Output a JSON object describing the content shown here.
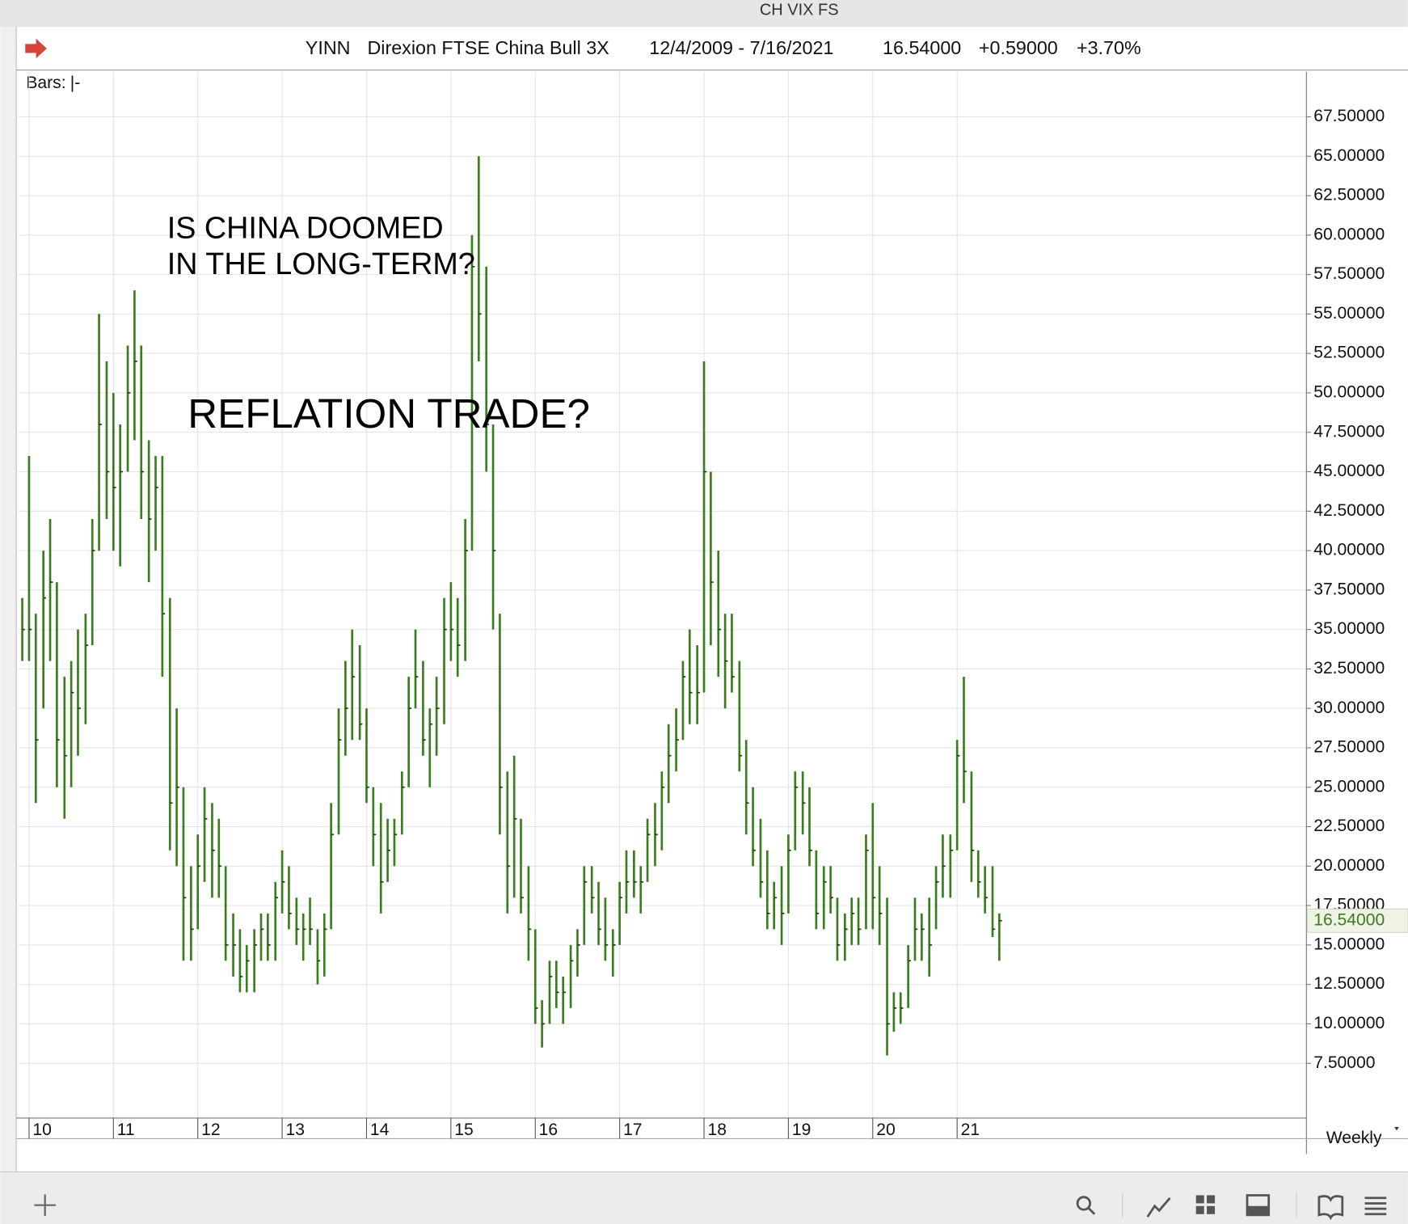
{
  "window_title": "CH VIX FS",
  "header": {
    "symbol": "YINN",
    "name": "Direxion FTSE China Bull 3X",
    "range": "12/4/2009 - 7/16/2021",
    "last": "16.54000",
    "change": "+0.59000",
    "percent": "+3.70%"
  },
  "bars_label": "Bars:",
  "bars_value": "|-",
  "period": "Weekly",
  "chart_data": {
    "type": "ohlc",
    "annotations": [
      "IS CHINA DOOMED",
      "IN THE LONG-TERM?",
      "REFLATION TRADE?"
    ],
    "color": "#3a7d1c",
    "xlim": [
      2009.87,
      2025.14
    ],
    "ylim": [
      4.03,
      70.35
    ],
    "xticks": [
      {
        "value": 2010,
        "label": "10"
      },
      {
        "value": 2011,
        "label": "11"
      },
      {
        "value": 2012,
        "label": "12"
      },
      {
        "value": 2013,
        "label": "13"
      },
      {
        "value": 2014,
        "label": "14"
      },
      {
        "value": 2015,
        "label": "15"
      },
      {
        "value": 2016,
        "label": "16"
      },
      {
        "value": 2017,
        "label": "17"
      },
      {
        "value": 2018,
        "label": "18"
      },
      {
        "value": 2019,
        "label": "19"
      },
      {
        "value": 2020,
        "label": "20"
      },
      {
        "value": 2021,
        "label": "21"
      }
    ],
    "yticks": [
      {
        "value": 7.5,
        "label": "7.50000"
      },
      {
        "value": 10,
        "label": "10.00000"
      },
      {
        "value": 12.5,
        "label": "12.50000"
      },
      {
        "value": 15,
        "label": "15.00000"
      },
      {
        "value": 17.5,
        "label": "17.50000"
      },
      {
        "value": 20,
        "label": "20.00000"
      },
      {
        "value": 22.5,
        "label": "22.50000"
      },
      {
        "value": 25,
        "label": "25.00000"
      },
      {
        "value": 27.5,
        "label": "27.50000"
      },
      {
        "value": 30,
        "label": "30.00000"
      },
      {
        "value": 32.5,
        "label": "32.50000"
      },
      {
        "value": 35,
        "label": "35.00000"
      },
      {
        "value": 37.5,
        "label": "37.50000"
      },
      {
        "value": 40,
        "label": "40.00000"
      },
      {
        "value": 42.5,
        "label": "42.50000"
      },
      {
        "value": 45,
        "label": "45.00000"
      },
      {
        "value": 47.5,
        "label": "47.50000"
      },
      {
        "value": 50,
        "label": "50.00000"
      },
      {
        "value": 52.5,
        "label": "52.50000"
      },
      {
        "value": 55,
        "label": "55.00000"
      },
      {
        "value": 57.5,
        "label": "57.50000"
      },
      {
        "value": 60,
        "label": "60.00000"
      },
      {
        "value": 62.5,
        "label": "62.50000"
      },
      {
        "value": 65,
        "label": "65.00000"
      },
      {
        "value": 67.5,
        "label": "67.50000"
      }
    ],
    "grid": true,
    "x": [
      2009.92,
      2010.0,
      2010.08,
      2010.17,
      2010.25,
      2010.33,
      2010.42,
      2010.5,
      2010.58,
      2010.67,
      2010.75,
      2010.83,
      2010.92,
      2011.0,
      2011.08,
      2011.17,
      2011.25,
      2011.33,
      2011.42,
      2011.5,
      2011.58,
      2011.67,
      2011.75,
      2011.83,
      2011.92,
      2012.0,
      2012.08,
      2012.17,
      2012.25,
      2012.33,
      2012.42,
      2012.5,
      2012.58,
      2012.67,
      2012.75,
      2012.83,
      2012.92,
      2013.0,
      2013.08,
      2013.17,
      2013.25,
      2013.33,
      2013.42,
      2013.5,
      2013.58,
      2013.67,
      2013.75,
      2013.83,
      2013.92,
      2014.0,
      2014.08,
      2014.17,
      2014.25,
      2014.33,
      2014.42,
      2014.5,
      2014.58,
      2014.67,
      2014.75,
      2014.83,
      2014.92,
      2015.0,
      2015.08,
      2015.17,
      2015.25,
      2015.33,
      2015.42,
      2015.5,
      2015.58,
      2015.67,
      2015.75,
      2015.83,
      2015.92,
      2016.0,
      2016.08,
      2016.17,
      2016.25,
      2016.33,
      2016.42,
      2016.5,
      2016.58,
      2016.67,
      2016.75,
      2016.83,
      2016.92,
      2017.0,
      2017.08,
      2017.17,
      2017.25,
      2017.33,
      2017.42,
      2017.5,
      2017.58,
      2017.67,
      2017.75,
      2017.83,
      2017.92,
      2018.0,
      2018.08,
      2018.17,
      2018.25,
      2018.33,
      2018.42,
      2018.5,
      2018.58,
      2018.67,
      2018.75,
      2018.83,
      2018.92,
      2019.0,
      2019.08,
      2019.17,
      2019.25,
      2019.33,
      2019.42,
      2019.5,
      2019.58,
      2019.67,
      2019.75,
      2019.83,
      2019.92,
      2020.0,
      2020.08,
      2020.17,
      2020.25,
      2020.33,
      2020.42,
      2020.5,
      2020.58,
      2020.67,
      2020.75,
      2020.83,
      2020.92,
      2021.0,
      2021.08,
      2021.17,
      2021.25,
      2021.33,
      2021.42,
      2021.5
    ],
    "high": [
      37,
      46,
      36,
      40,
      42,
      38,
      32,
      33,
      35,
      36,
      42,
      55,
      52,
      50,
      48,
      53,
      56.5,
      53,
      47,
      46,
      46,
      37,
      30,
      25,
      20,
      22,
      25,
      24,
      23,
      20,
      17,
      16,
      15,
      16,
      17,
      17,
      19,
      21,
      20,
      18,
      17,
      18,
      16,
      17,
      24,
      30,
      33,
      35,
      34,
      30,
      25,
      24,
      23,
      23,
      26,
      32,
      35,
      33,
      30,
      32,
      37,
      38,
      37,
      42,
      60,
      65,
      58,
      48,
      36,
      26,
      27,
      23,
      20,
      16,
      11.5,
      14,
      14,
      13,
      15,
      16,
      20,
      20,
      19,
      18,
      16,
      19,
      21,
      21,
      20,
      23,
      24,
      26,
      29,
      30,
      33,
      35,
      34,
      52,
      45,
      40,
      36,
      36,
      33,
      28,
      25,
      23,
      21,
      19,
      20,
      22,
      26,
      26,
      25,
      21,
      20,
      20,
      18,
      17,
      18,
      18,
      22,
      24,
      20,
      18,
      12,
      12,
      15,
      18,
      17,
      18,
      20,
      22,
      22,
      28,
      32,
      26,
      21,
      20,
      20,
      17
    ],
    "low": [
      33,
      33,
      24,
      30,
      33,
      25,
      23,
      25,
      27,
      29,
      34,
      40,
      42,
      40,
      39,
      45,
      47,
      42,
      38,
      40,
      32,
      21,
      20,
      14,
      14,
      16,
      19,
      18,
      18,
      14,
      13,
      12,
      12,
      12,
      14,
      14,
      14,
      17,
      16,
      15,
      14,
      15,
      12.5,
      13,
      16,
      22,
      27,
      28,
      28,
      24,
      20,
      17,
      19,
      20,
      22,
      25,
      30,
      27,
      25,
      27,
      29,
      33,
      32,
      33,
      40,
      52,
      45,
      35,
      22,
      17,
      18,
      17,
      14,
      10,
      8.5,
      10,
      11,
      10,
      11,
      13,
      15,
      17,
      15,
      14,
      13,
      15,
      17,
      18,
      17,
      19,
      20,
      21,
      24,
      26,
      28,
      29,
      29,
      31,
      34,
      32,
      30,
      31,
      26,
      22,
      20,
      18,
      16,
      16,
      15,
      17,
      21,
      22,
      20,
      16,
      16,
      17,
      14,
      14,
      15,
      15,
      16,
      16,
      15,
      8,
      9.5,
      10,
      11,
      14,
      14,
      13,
      16,
      18,
      18,
      21,
      24,
      19,
      18,
      17,
      15.5,
      14
    ],
    "close": [
      35,
      35,
      28,
      37,
      38,
      28,
      27,
      31,
      30,
      34,
      40,
      48,
      45,
      44,
      45,
      50,
      52,
      45,
      42,
      44,
      36,
      24,
      25,
      18,
      16,
      20,
      23,
      21,
      20,
      15,
      15,
      13,
      14,
      15,
      16,
      15,
      18,
      19,
      17,
      16,
      16,
      16,
      14,
      16,
      22,
      28,
      30,
      32,
      29,
      25,
      22,
      19,
      21,
      22,
      25,
      30,
      32,
      28,
      29,
      30,
      35,
      35,
      34,
      40,
      58,
      55,
      48,
      40,
      25,
      20,
      23,
      18,
      16,
      11,
      10,
      13,
      12,
      12,
      14,
      15,
      19,
      18,
      16,
      15,
      15,
      18,
      19,
      19,
      19,
      22,
      22,
      25,
      27,
      28,
      32,
      31,
      31,
      45,
      38,
      35,
      33,
      32,
      27,
      24,
      21,
      19,
      17,
      18,
      17,
      21,
      25,
      24,
      21,
      17,
      19,
      18,
      15,
      16,
      17,
      16,
      21,
      18,
      17,
      10,
      11,
      11,
      14,
      16,
      16,
      15,
      19,
      20,
      21,
      27,
      26,
      21,
      19,
      18,
      16,
      16.54
    ]
  }
}
